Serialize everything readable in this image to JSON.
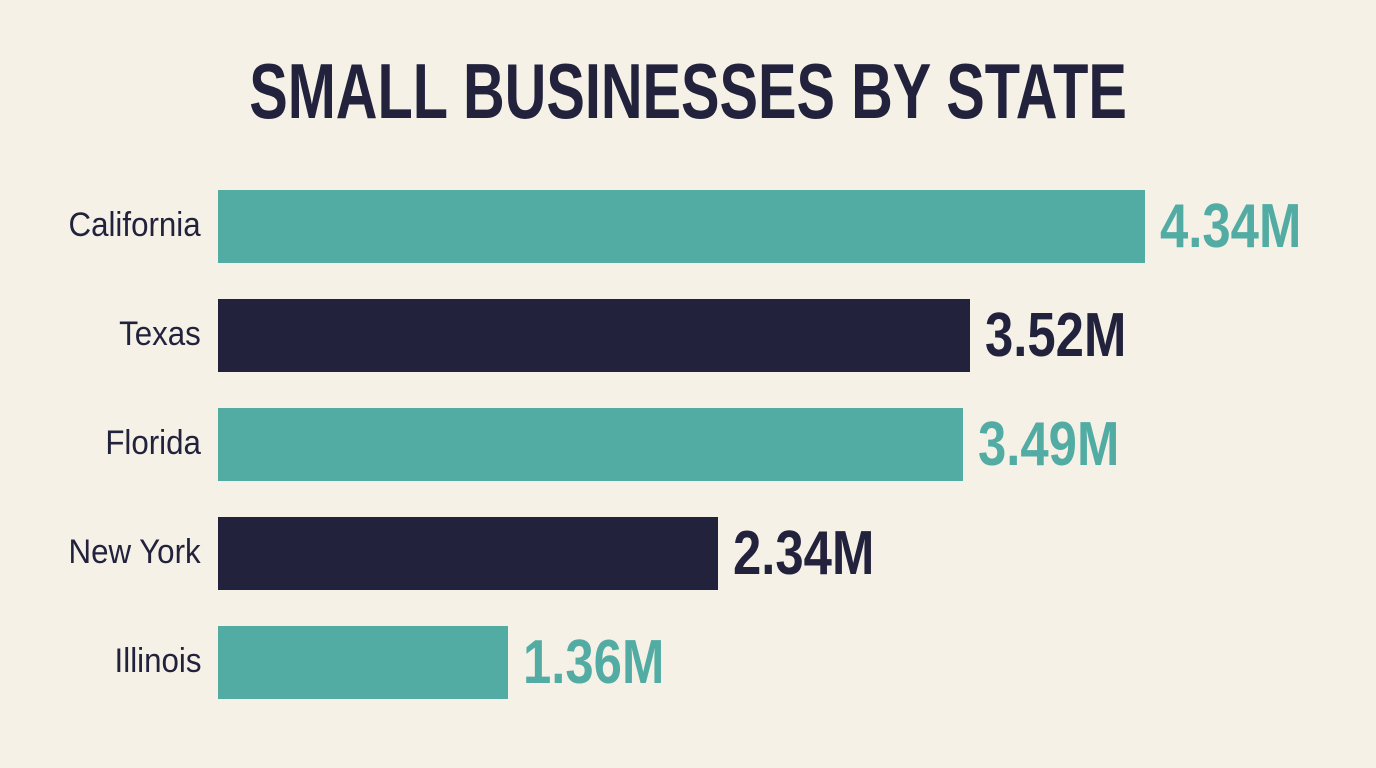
{
  "chart_data": {
    "type": "bar",
    "orientation": "horizontal",
    "title": "SMALL BUSINESSES BY STATE",
    "categories": [
      "California",
      "Texas",
      "Florida",
      "New York",
      "Illinois"
    ],
    "values": [
      4.34,
      3.52,
      3.49,
      2.34,
      1.36
    ],
    "value_labels": [
      "4.34M",
      "3.52M",
      "3.49M",
      "2.34M",
      "1.36M"
    ],
    "unit": "M",
    "xlabel": "",
    "ylabel": "",
    "xlim": [
      0,
      4.34
    ],
    "grid": false,
    "bar_colors": [
      "#52aca3",
      "#22223d",
      "#52aca3",
      "#22223d",
      "#52aca3"
    ]
  },
  "colors": {
    "background": "#f5f1e6",
    "teal": "#52aca3",
    "navy": "#22223d"
  }
}
